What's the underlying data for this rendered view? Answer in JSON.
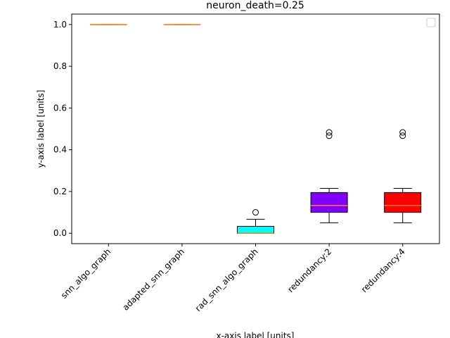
{
  "chart_data": {
    "type": "box",
    "title": "neuron_death=0.25",
    "xlabel": "x-axis label [units]",
    "ylabel": "y-axis label [units]",
    "ylim": [
      -0.05,
      1.05
    ],
    "yticks": [
      0.0,
      0.2,
      0.4,
      0.6,
      0.8,
      1.0
    ],
    "ytick_labels": [
      "0.0",
      "0.2",
      "0.4",
      "0.6",
      "0.8",
      "1.0"
    ],
    "grid": false,
    "legend": {
      "placement": "upper right",
      "entries": []
    },
    "categories": [
      "snn_algo_graph",
      "adapted_snn_graph",
      "rad_snn_algo_graph",
      "redundancy:2",
      "redundancy:4"
    ],
    "boxes": [
      {
        "category": "snn_algo_graph",
        "color": "#f0a0a0",
        "whisker_low": 1.0,
        "q1": 1.0,
        "median": 1.0,
        "q3": 1.0,
        "whisker_high": 1.0,
        "outliers": []
      },
      {
        "category": "adapted_snn_graph",
        "color": "#f0a0a0",
        "whisker_low": 1.0,
        "q1": 1.0,
        "median": 1.0,
        "q3": 1.0,
        "whisker_high": 1.0,
        "outliers": []
      },
      {
        "category": "rad_snn_algo_graph",
        "color": "#00ffff",
        "whisker_low": 0.0,
        "q1": 0.0,
        "median": 0.0,
        "q3": 0.033,
        "whisker_high": 0.067,
        "outliers": [
          0.1
        ]
      },
      {
        "category": "redundancy:2",
        "color": "#7f00ff",
        "whisker_low": 0.05,
        "q1": 0.1,
        "median": 0.133,
        "q3": 0.195,
        "whisker_high": 0.215,
        "outliers": [
          0.467,
          0.483
        ]
      },
      {
        "category": "redundancy:4",
        "color": "#ff0000",
        "whisker_low": 0.05,
        "q1": 0.1,
        "median": 0.133,
        "q3": 0.195,
        "whisker_high": 0.215,
        "outliers": [
          0.467,
          0.483
        ]
      }
    ],
    "median_color": "#ff7f0e"
  }
}
